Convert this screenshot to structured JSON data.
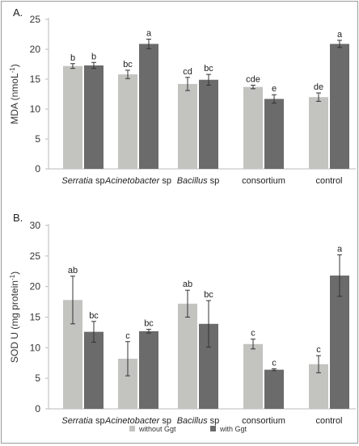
{
  "chart_data": [
    {
      "type": "bar",
      "panel_label": "A.",
      "ylabel_main": "MDA (nmoL",
      "ylabel_sup": "-1",
      "ylabel_end": ")",
      "ylim": [
        0,
        25
      ],
      "yticks": [
        0,
        5,
        10,
        15,
        20,
        25
      ],
      "categories": [
        {
          "name": "Serratia",
          "suffix": " sp",
          "italic": true
        },
        {
          "name": "Acinetobacter",
          "suffix": " sp",
          "italic": true
        },
        {
          "name": "Bacillus",
          "suffix": " sp",
          "italic": true
        },
        {
          "name": "consortium",
          "suffix": "",
          "italic": false
        },
        {
          "name": "control",
          "suffix": "",
          "italic": false
        }
      ],
      "series": [
        {
          "name": "without Ggt",
          "color": "#c3c3c0",
          "values": [
            17.2,
            15.8,
            14.2,
            13.7,
            12.0
          ],
          "errors": [
            0.4,
            0.7,
            1.1,
            0.3,
            0.7
          ],
          "letters": [
            "b",
            "bc",
            "cd",
            "cde",
            "de"
          ]
        },
        {
          "name": "with Ggt",
          "color": "#6b6b6b",
          "values": [
            17.3,
            20.9,
            14.9,
            11.7,
            20.9
          ],
          "errors": [
            0.5,
            0.8,
            0.9,
            0.7,
            0.6
          ],
          "letters": [
            "b",
            "a",
            "bc",
            "e",
            "a"
          ]
        }
      ]
    },
    {
      "type": "bar",
      "panel_label": "B.",
      "ylabel_main": "SOD U (mg protein",
      "ylabel_sup": "-1",
      "ylabel_end": ")",
      "ylim": [
        0,
        30
      ],
      "yticks": [
        0,
        5,
        10,
        15,
        20,
        25,
        30
      ],
      "categories": [
        {
          "name": "Serratia",
          "suffix": " sp",
          "italic": true
        },
        {
          "name": "Acinetobacter",
          "suffix": " sp",
          "italic": true
        },
        {
          "name": "Bacillus",
          "suffix": " sp",
          "italic": true
        },
        {
          "name": "consortium",
          "suffix": "",
          "italic": false
        },
        {
          "name": "control",
          "suffix": "",
          "italic": false
        }
      ],
      "series": [
        {
          "name": "without Ggt",
          "color": "#c3c3c0",
          "values": [
            17.8,
            8.2,
            17.2,
            10.6,
            7.3
          ],
          "errors": [
            3.9,
            2.8,
            2.2,
            0.8,
            1.4
          ],
          "letters": [
            "ab",
            "c",
            "ab",
            "c",
            "c"
          ]
        },
        {
          "name": "with Ggt",
          "color": "#6b6b6b",
          "values": [
            12.6,
            12.7,
            13.9,
            6.4,
            21.8
          ],
          "errors": [
            1.7,
            0.3,
            3.8,
            0.15,
            3.4
          ],
          "letters": [
            "bc",
            "bc",
            "bc",
            "c",
            "a"
          ]
        }
      ]
    }
  ],
  "legend": {
    "items": [
      {
        "label": "without Ggt",
        "color": "#c3c3c0"
      },
      {
        "label": "with Ggt",
        "color": "#6b6b6b"
      }
    ]
  }
}
